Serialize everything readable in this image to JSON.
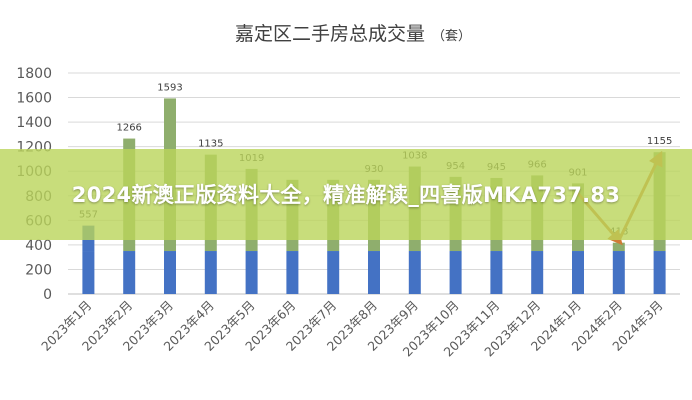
{
  "banner": {
    "text": "2024新澳正版资料大全，精准解读_四喜版MKA737.83"
  },
  "colors": {
    "bar_top": "#8fae6d",
    "bar_bottom": "#4472c4",
    "bar_top_first": "#4472c4",
    "arrow": "#d07b36",
    "axis_text": "#595959",
    "grid": "#d9d9d9"
  },
  "chart_data": {
    "type": "bar",
    "title": "嘉定区二手房总成交量",
    "title_unit": "（套）",
    "categories": [
      "2023年1月",
      "2023年2月",
      "2023年3月",
      "2023年4月",
      "2023年5月",
      "2023年6月",
      "2023年7月",
      "2023年8月",
      "2023年9月",
      "2023年10月",
      "2023年11月",
      "2023年12月",
      "2024年1月",
      "2024年2月",
      "2024年3月"
    ],
    "values": [
      557,
      1266,
      1593,
      1135,
      1019,
      930,
      930,
      930,
      1038,
      954,
      945,
      966,
      901,
      418,
      1155
    ],
    "data_labels": [
      "557",
      "1266",
      "1593",
      "1135",
      "1019",
      "",
      "",
      "930",
      "1038",
      "954",
      "945",
      "966",
      "901",
      "418",
      "1155"
    ],
    "ylim": [
      0,
      1800
    ],
    "yticks": [
      0,
      200,
      400,
      600,
      800,
      1000,
      1200,
      1400,
      1600,
      1800
    ],
    "base_segment": 350,
    "grid": true,
    "legend": "none",
    "annotations": [
      {
        "type": "arrow",
        "from": "2024年1月",
        "to": "2024年2月"
      },
      {
        "type": "arrow",
        "from": "2024年2月",
        "to": "2024年3月"
      }
    ]
  }
}
